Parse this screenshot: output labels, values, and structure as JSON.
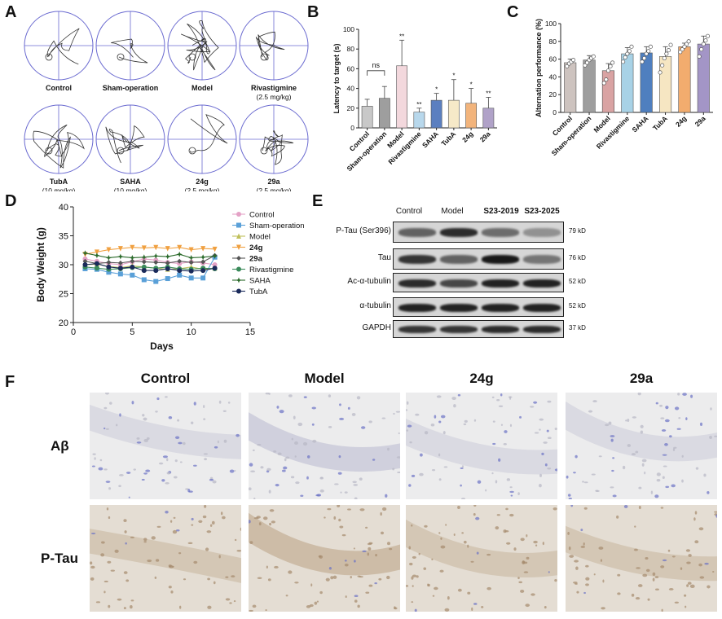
{
  "panel_labels": [
    "A",
    "B",
    "C",
    "D",
    "E",
    "F"
  ],
  "panel_a": {
    "items": [
      {
        "label": "Control",
        "sub": ""
      },
      {
        "label": "Sham-operation",
        "sub": ""
      },
      {
        "label": "Model",
        "sub": ""
      },
      {
        "label": "Rivastigmine",
        "sub": "(2.5 mg/kg)"
      },
      {
        "label": "TubA",
        "sub": "(10 mg/kg)"
      },
      {
        "label": "SAHA",
        "sub": "(10 mg/kg)"
      },
      {
        "label": "24g",
        "sub": "(2.5 mg/kg)"
      },
      {
        "label": "29a",
        "sub": "(2.5 mg/kg)"
      }
    ]
  },
  "chart_data": [
    {
      "panel": "B",
      "type": "bar",
      "ylabel": "Latency to target (s)",
      "ylim": [
        0,
        100
      ],
      "yticks": [
        0,
        20,
        40,
        60,
        80,
        100
      ],
      "categories": [
        "Control",
        "Sham-operation",
        "Model",
        "Rivastigmine",
        "SAHA",
        "TubA",
        "24g",
        "29a"
      ],
      "values": [
        22,
        30,
        63,
        16,
        28,
        28,
        25,
        20
      ],
      "errors": [
        7,
        12,
        26,
        4,
        7,
        21,
        15,
        11
      ],
      "significance": [
        "",
        "",
        "**",
        "**",
        "*",
        "*",
        "*",
        "**"
      ],
      "colors": [
        "#c8c8c8",
        "#9e9e9e",
        "#f3d8dd",
        "#b8d8ec",
        "#5b7fc0",
        "#f6e9c8",
        "#f2b47c",
        "#b0a2c8"
      ],
      "annotation": "ns"
    },
    {
      "panel": "C",
      "type": "bar",
      "ylabel": "Alternation performance (%)",
      "ylim": [
        0,
        100
      ],
      "yticks": [
        0,
        20,
        40,
        60,
        80,
        100
      ],
      "categories": [
        "Control",
        "Sham-operation",
        "Model",
        "Rivastigmine",
        "SAHA",
        "TubA",
        "24g",
        "29a"
      ],
      "values": [
        56,
        59,
        47,
        66,
        67,
        63,
        74,
        77
      ],
      "errors": [
        4,
        5,
        8,
        7,
        7,
        11,
        4,
        9
      ],
      "points": [
        [
          52,
          55,
          57,
          59
        ],
        [
          53,
          56,
          59,
          61,
          63
        ],
        [
          33,
          37,
          47,
          52,
          56
        ],
        [
          57,
          62,
          66,
          69,
          74
        ],
        [
          57,
          61,
          66,
          69,
          74
        ],
        [
          45,
          53,
          61,
          66,
          70,
          76
        ],
        [
          68,
          71,
          74,
          77,
          80
        ],
        [
          63,
          71,
          77,
          81,
          86
        ]
      ],
      "colors": [
        "#cdc3bf",
        "#9e9e9e",
        "#d9a3a3",
        "#a8d2e6",
        "#4f7fbf",
        "#f6e6c2",
        "#f2ac6e",
        "#a395c6"
      ]
    },
    {
      "panel": "D",
      "type": "line",
      "xlabel": "Days",
      "ylabel": "Body Weight (g)",
      "xlim": [
        0,
        15
      ],
      "ylim": [
        20,
        40
      ],
      "xticks": [
        0,
        5,
        10,
        15
      ],
      "yticks": [
        20,
        25,
        30,
        35,
        40
      ],
      "x": [
        1,
        2,
        3,
        4,
        5,
        6,
        7,
        8,
        9,
        10,
        11,
        12
      ],
      "series": [
        {
          "name": "Control",
          "color": "#e4a2c6",
          "marker": "circle",
          "values": [
            31,
            30.6,
            30.2,
            30,
            30.5,
            31,
            30.8,
            30.4,
            30.2,
            30.5,
            30.3,
            30
          ]
        },
        {
          "name": "Sham-operation",
          "color": "#5aa0d8",
          "marker": "square",
          "values": [
            29.3,
            29.2,
            28.7,
            28.4,
            28.2,
            27.4,
            27.1,
            27.6,
            28.2,
            27.7,
            27.7,
            31.3
          ]
        },
        {
          "name": "Model",
          "color": "#c0c05a",
          "marker": "triangle",
          "values": [
            30,
            30.1,
            29.7,
            29.5,
            29.8,
            29.6,
            29.4,
            29.2,
            29.3,
            29.6,
            29.2,
            29.4
          ]
        },
        {
          "name": "24g",
          "color": "#f0a040",
          "marker": "tri-down",
          "values": [
            31.8,
            32.2,
            32.6,
            32.8,
            33,
            32.9,
            33,
            32.8,
            33,
            32.6,
            32.8,
            32.7
          ]
        },
        {
          "name": "29a",
          "color": "#555555",
          "marker": "diamond",
          "values": [
            30.6,
            30.2,
            30.4,
            30.3,
            30.6,
            30.5,
            30.4,
            30.3,
            30.6,
            30.4,
            30.5,
            31.6
          ]
        },
        {
          "name": "Rivastigmine",
          "color": "#3a8a5a",
          "marker": "circle",
          "values": [
            29.6,
            29.4,
            29.2,
            29.3,
            29.5,
            29.6,
            29.4,
            29.6,
            29.3,
            29.2,
            29.4,
            29.3
          ]
        },
        {
          "name": "SAHA",
          "color": "#2a6a2a",
          "marker": "star",
          "values": [
            32,
            31.6,
            31.2,
            31.4,
            31.2,
            31.3,
            31.5,
            31.4,
            31.8,
            31.2,
            31.3,
            31.5
          ]
        },
        {
          "name": "TubA",
          "color": "#1a2a5a",
          "marker": "circle",
          "values": [
            30,
            30.2,
            29.6,
            29.4,
            29.6,
            29,
            29,
            29.3,
            29,
            28.9,
            29,
            29.4
          ]
        }
      ]
    }
  ],
  "panel_e": {
    "columns": [
      "Control",
      "Model",
      "S23-2019",
      "S23-2025"
    ],
    "rows": [
      {
        "name": "P-Tau (Ser396)",
        "kd": "79 kD",
        "intensity": [
          0.55,
          0.85,
          0.5,
          0.3
        ]
      },
      {
        "name": "Tau",
        "kd": "76 kD",
        "intensity": [
          0.8,
          0.55,
          0.95,
          0.45
        ]
      },
      {
        "name": "Ac-α-tubulin",
        "kd": "52 kD",
        "intensity": [
          0.85,
          0.7,
          0.9,
          0.9
        ]
      },
      {
        "name": "α-tubulin",
        "kd": "52 kD",
        "intensity": [
          0.9,
          0.9,
          0.9,
          0.9
        ]
      },
      {
        "name": "GAPDH",
        "kd": "37 kD",
        "intensity": [
          0.8,
          0.8,
          0.85,
          0.85
        ]
      }
    ]
  },
  "panel_f": {
    "columns": [
      "Control",
      "Model",
      "24g",
      "29a"
    ],
    "rows": [
      "Aβ",
      "P-Tau"
    ]
  }
}
